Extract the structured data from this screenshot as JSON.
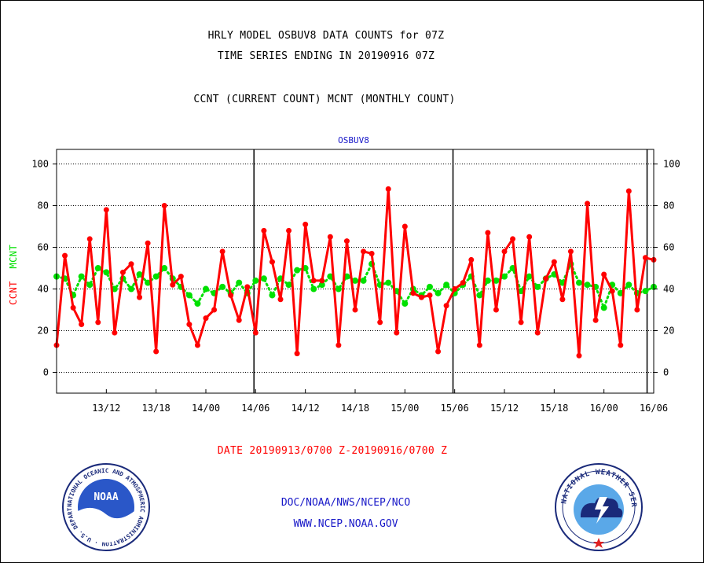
{
  "header": {
    "line1": "HRLY MODEL OSBUV8 DATA COUNTS for 07Z",
    "line2": "TIME SERIES ENDING IN 20190916 07Z",
    "line3": "CCNT (CURRENT COUNT) MCNT (MONTHLY COUNT)"
  },
  "ylabel": {
    "ccnt": "CCNT",
    "mcnt": "MCNT"
  },
  "date_range": "DATE 20190913/0700 Z-20190916/0700 Z",
  "footer": {
    "line1": "DOC/NOAA/NWS/NCEP/NCO",
    "line2": "WWW.NCEP.NOAA.GOV"
  },
  "logos": {
    "noaa": "NOAA",
    "noaa_ring": "NATIONAL OCEANIC AND ATMOSPHERIC ADMINISTRATION · U.S. DEPARTMENT OF COMMERCE ·",
    "nws_ring": "NATIONAL WEATHER SERVICE"
  },
  "colors": {
    "ccnt": "#ff0000",
    "mcnt": "#00e000",
    "title": "#1818c8"
  },
  "chart_data": {
    "type": "line",
    "title": "OSBUV8",
    "xlabel": "",
    "ylabel": "CCNT MCNT",
    "x_start_hour": 0,
    "x_end_hour": 72,
    "xlim": [
      0,
      72
    ],
    "ylim": [
      -10,
      107
    ],
    "y_ticks": [
      0,
      20,
      40,
      60,
      80,
      100
    ],
    "x_ticks": [
      {
        "hour": 6,
        "label": "13/12"
      },
      {
        "hour": 12,
        "label": "13/18"
      },
      {
        "hour": 18,
        "label": "14/00"
      },
      {
        "hour": 24,
        "label": "14/06"
      },
      {
        "hour": 30,
        "label": "14/12"
      },
      {
        "hour": 36,
        "label": "14/18"
      },
      {
        "hour": 42,
        "label": "15/00"
      },
      {
        "hour": 48,
        "label": "15/06"
      },
      {
        "hour": 54,
        "label": "15/12"
      },
      {
        "hour": 60,
        "label": "15/18"
      },
      {
        "hour": 66,
        "label": "16/00"
      },
      {
        "hour": 72,
        "label": "16/06"
      }
    ],
    "day_dividers": [
      23.8,
      47.8,
      71.2
    ],
    "grid": true,
    "series": [
      {
        "name": "CCNT",
        "color": "#ff0000",
        "values": [
          13,
          56,
          31,
          23,
          64,
          24,
          78,
          19,
          48,
          52,
          36,
          62,
          10,
          80,
          42,
          46,
          23,
          13,
          26,
          30,
          58,
          37,
          25,
          41,
          19,
          68,
          53,
          35,
          68,
          9,
          71,
          44,
          44,
          65,
          13,
          63,
          30,
          58,
          57,
          24,
          88,
          19,
          70,
          38,
          36,
          37,
          10,
          32,
          40,
          43,
          54,
          13,
          67,
          30,
          58,
          64,
          24,
          65,
          19,
          45,
          53,
          35,
          58,
          8,
          81,
          25,
          47,
          39,
          13,
          87,
          30,
          55,
          54
        ]
      },
      {
        "name": "MCNT",
        "color": "#00e000",
        "values": [
          46,
          45,
          37,
          46,
          42,
          50,
          48,
          40,
          45,
          40,
          47,
          43,
          46,
          50,
          45,
          41,
          37,
          33,
          40,
          38,
          41,
          38,
          43,
          38,
          44,
          45,
          37,
          45,
          42,
          49,
          50,
          40,
          42,
          46,
          40,
          46,
          44,
          44,
          52,
          42,
          43,
          39,
          33,
          40,
          37,
          41,
          38,
          42,
          38,
          42,
          46,
          37,
          44,
          44,
          46,
          50,
          39,
          46,
          41,
          45,
          47,
          43,
          52,
          43,
          42,
          41,
          31,
          42,
          38,
          42,
          38,
          39,
          41
        ]
      }
    ]
  }
}
